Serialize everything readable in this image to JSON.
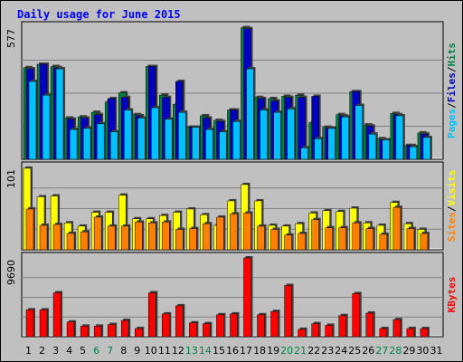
{
  "chart_data": [
    {
      "type": "bar",
      "title": "Daily usage for June 2015",
      "panel": "top",
      "y_tick_label": "577",
      "ylim": [
        0,
        577
      ],
      "grid": true,
      "right_label": {
        "parts": [
          "Pages",
          "/",
          "Files",
          "/",
          "Hits"
        ],
        "colors": [
          "#00c0ff",
          "#000000",
          "#0000c0",
          "#000000",
          "#008040"
        ]
      },
      "categories": [
        "1",
        "2",
        "3",
        "4",
        "5",
        "6",
        "7",
        "8",
        "9",
        "10",
        "11",
        "12",
        "13",
        "14",
        "15",
        "16",
        "17",
        "18",
        "19",
        "20",
        "21",
        "22",
        "23",
        "24",
        "25",
        "26",
        "27",
        "28",
        "29",
        "30",
        "31"
      ],
      "weekend_days": [
        "6",
        "7",
        "13",
        "14",
        "20",
        "21",
        "27",
        "28"
      ],
      "series": [
        {
          "name": "Hits",
          "color": "#008040",
          "values": [
            400,
            415,
            405,
            180,
            185,
            205,
            250,
            290,
            195,
            405,
            280,
            240,
            140,
            190,
            170,
            215,
            575,
            270,
            265,
            275,
            280,
            160,
            140,
            195,
            295,
            150,
            90,
            200,
            60,
            115,
            0
          ]
        },
        {
          "name": "Files",
          "color": "#0000c0",
          "values": [
            395,
            415,
            400,
            175,
            180,
            195,
            265,
            270,
            190,
            405,
            270,
            340,
            140,
            180,
            165,
            215,
            570,
            265,
            255,
            270,
            270,
            275,
            135,
            190,
            295,
            145,
            85,
            195,
            60,
            110,
            0
          ]
        },
        {
          "name": "Pages",
          "color": "#00c0ff",
          "values": [
            340,
            280,
            395,
            130,
            135,
            155,
            120,
            215,
            180,
            225,
            175,
            205,
            140,
            130,
            120,
            165,
            395,
            215,
            205,
            220,
            50,
            90,
            135,
            185,
            235,
            110,
            85,
            190,
            55,
            95,
            0
          ]
        }
      ]
    },
    {
      "type": "bar",
      "panel": "middle",
      "y_tick_label": "101",
      "ylim": [
        0,
        101
      ],
      "grid": true,
      "right_label": {
        "parts": [
          "Sites",
          "/",
          "Visits"
        ],
        "colors": [
          "#ff8000",
          "#000000",
          "#ffff00"
        ]
      },
      "series": [
        {
          "name": "Visits",
          "color": "#ffff00",
          "values": [
            100,
            65,
            66,
            33,
            29,
            46,
            46,
            67,
            38,
            38,
            42,
            46,
            50,
            43,
            30,
            60,
            80,
            60,
            30,
            29,
            32,
            45,
            48,
            47,
            51,
            33,
            30,
            58,
            32,
            25,
            0
          ]
        },
        {
          "name": "Sites",
          "color": "#ff8000",
          "values": [
            50,
            30,
            31,
            20,
            22,
            40,
            29,
            29,
            34,
            33,
            34,
            25,
            26,
            32,
            40,
            44,
            45,
            29,
            25,
            18,
            20,
            37,
            27,
            27,
            33,
            26,
            19,
            52,
            26,
            20,
            0
          ]
        }
      ]
    },
    {
      "type": "bar",
      "panel": "bottom",
      "y_tick_label": "9690",
      "ylim": [
        0,
        9690
      ],
      "grid": true,
      "right_label": {
        "parts": [
          "KBytes"
        ],
        "colors": [
          "#ff0000"
        ]
      },
      "series": [
        {
          "name": "KBytes",
          "color": "#ff0000",
          "values": [
            3300,
            3300,
            5400,
            1800,
            1300,
            1300,
            1500,
            2000,
            1000,
            5400,
            2800,
            3800,
            1700,
            1600,
            2700,
            2800,
            9690,
            2700,
            3100,
            6300,
            900,
            1600,
            1400,
            2600,
            5300,
            2900,
            1000,
            2100,
            1000,
            1000,
            0
          ]
        }
      ]
    }
  ],
  "colors": {
    "background": "#c0c0c0",
    "grid": "#808080",
    "axis_text": "#000000",
    "title": "#0000ff",
    "weekend": "#008040"
  }
}
